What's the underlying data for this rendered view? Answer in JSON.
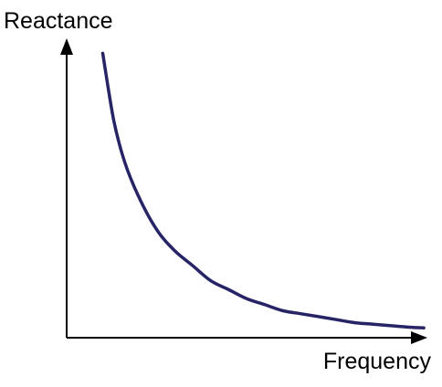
{
  "colors": {
    "axis": "#000000",
    "curve": "#262466",
    "background": "#ffffff"
  },
  "chart_data": {
    "type": "line",
    "title": "",
    "xlabel": "Frequency",
    "ylabel": "Reactance",
    "grid": false,
    "legend": "none",
    "xlim": [
      0,
      10
    ],
    "ylim": [
      0,
      10
    ],
    "series": [
      {
        "points": [
          {
            "x": 1.0,
            "y": 9.5
          },
          {
            "x": 1.3,
            "y": 7.3
          },
          {
            "x": 1.6,
            "y": 5.9
          },
          {
            "x": 2.0,
            "y": 4.7
          },
          {
            "x": 2.5,
            "y": 3.6
          },
          {
            "x": 3.0,
            "y": 2.9
          },
          {
            "x": 3.5,
            "y": 2.4
          },
          {
            "x": 4.0,
            "y": 1.9
          },
          {
            "x": 4.5,
            "y": 1.6
          },
          {
            "x": 5.0,
            "y": 1.3
          },
          {
            "x": 5.5,
            "y": 1.1
          },
          {
            "x": 6.0,
            "y": 0.9
          },
          {
            "x": 6.5,
            "y": 0.8
          },
          {
            "x": 7.0,
            "y": 0.7
          },
          {
            "x": 7.5,
            "y": 0.6
          },
          {
            "x": 8.0,
            "y": 0.5
          },
          {
            "x": 8.5,
            "y": 0.45
          },
          {
            "x": 9.0,
            "y": 0.4
          },
          {
            "x": 9.5,
            "y": 0.35
          },
          {
            "x": 9.9,
            "y": 0.33
          }
        ]
      }
    ]
  }
}
